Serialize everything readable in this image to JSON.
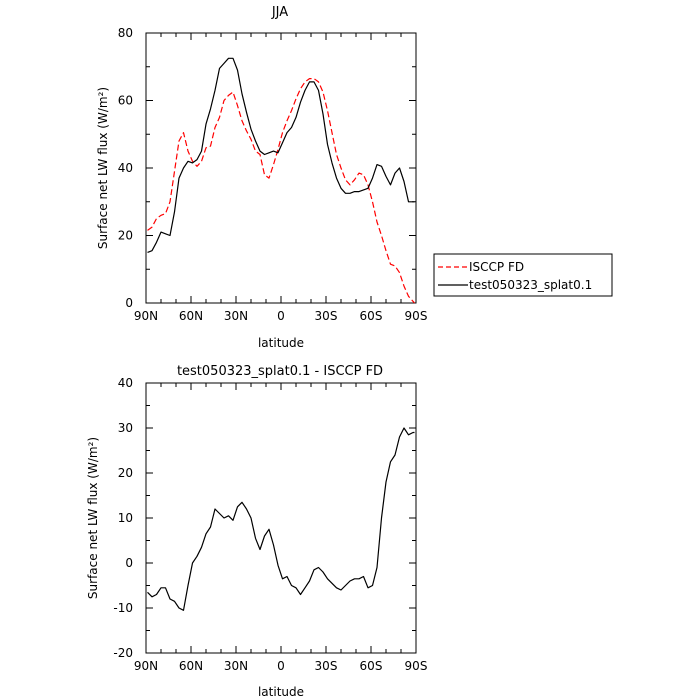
{
  "chart_data": [
    {
      "type": "line",
      "title": "JJA",
      "xlabel": "latitude",
      "ylabel": "Surface net LW flux (W/m²)",
      "xlim": [
        90,
        -90
      ],
      "ylim": [
        0,
        80
      ],
      "x_ticks": [
        "90N",
        "60N",
        "30N",
        "0",
        "30S",
        "60S",
        "90S"
      ],
      "x_tick_values": [
        90,
        60,
        30,
        0,
        -30,
        -60,
        -90
      ],
      "y_ticks": [
        "0",
        "20",
        "40",
        "60",
        "80"
      ],
      "y_tick_values": [
        0,
        20,
        40,
        60,
        80
      ],
      "legend_position": "outside-right",
      "series": [
        {
          "name": "ISCCP FD",
          "color": "#ff0000",
          "dash": "dashed",
          "x": [
            89,
            86,
            83,
            80,
            77,
            74,
            71,
            68,
            65,
            62,
            59,
            56,
            53,
            50,
            47,
            44,
            41,
            38,
            35,
            32,
            29,
            26,
            23,
            20,
            17,
            14,
            11,
            8,
            5,
            2,
            -1,
            -4,
            -7,
            -10,
            -13,
            -16,
            -19,
            -22,
            -25,
            -28,
            -31,
            -34,
            -37,
            -40,
            -43,
            -46,
            -49,
            -52,
            -55,
            -58,
            -61,
            -64,
            -67,
            -70,
            -73,
            -76,
            -79,
            -82,
            -85,
            -88,
            -89
          ],
          "y": [
            21.5,
            22.5,
            25,
            26,
            26.5,
            30,
            39,
            48,
            50.5,
            45,
            42,
            40.5,
            42,
            46,
            46.5,
            52,
            55,
            60,
            61.5,
            62.5,
            58.5,
            54,
            51,
            48.5,
            45,
            44,
            38,
            37,
            41,
            45.5,
            50.5,
            54,
            57,
            60.5,
            63.5,
            65.5,
            66.5,
            66.5,
            65.5,
            62.5,
            57,
            50.5,
            44,
            40,
            36.5,
            35,
            36.5,
            38.5,
            38,
            35,
            30,
            24,
            20,
            15.5,
            11.5,
            11,
            9,
            5,
            2,
            0.5,
            0
          ]
        },
        {
          "name": "test050323_splat0.1",
          "color": "#000000",
          "dash": "solid",
          "x": [
            89,
            86,
            83,
            80,
            77,
            74,
            71,
            68,
            65,
            62,
            59,
            56,
            53,
            50,
            47,
            44,
            41,
            38,
            35,
            32,
            29,
            26,
            23,
            20,
            17,
            14,
            11,
            8,
            5,
            2,
            -1,
            -4,
            -7,
            -10,
            -13,
            -16,
            -19,
            -22,
            -25,
            -28,
            -31,
            -34,
            -37,
            -40,
            -43,
            -46,
            -49,
            -52,
            -55,
            -58,
            -61,
            -64,
            -67,
            -70,
            -73,
            -76,
            -79,
            -82,
            -85,
            -88,
            -89
          ],
          "y": [
            15,
            15.5,
            18,
            21,
            20.5,
            20,
            27,
            37,
            40,
            42,
            41.5,
            42.5,
            45,
            53,
            57.5,
            63,
            69.5,
            71,
            72.5,
            72.5,
            69,
            62,
            56.5,
            51.5,
            48,
            45,
            44,
            44.5,
            45,
            44.5,
            47.5,
            50.5,
            52,
            55,
            59.5,
            63,
            65.5,
            65.5,
            63,
            56,
            47,
            41.5,
            37,
            34,
            32.5,
            32.5,
            33,
            33,
            33.5,
            34,
            37,
            41,
            40.5,
            37.5,
            35,
            38.5,
            40,
            36,
            30,
            30,
            30
          ]
        }
      ]
    },
    {
      "type": "line",
      "title": "test050323_splat0.1 - ISCCP FD",
      "xlabel": "latitude",
      "ylabel": "Surface net LW flux (W/m²)",
      "xlim": [
        90,
        -90
      ],
      "ylim": [
        -20,
        40
      ],
      "x_ticks": [
        "90N",
        "60N",
        "30N",
        "0",
        "30S",
        "60S",
        "90S"
      ],
      "x_tick_values": [
        90,
        60,
        30,
        0,
        -30,
        -60,
        -90
      ],
      "y_ticks": [
        "-20",
        "-10",
        "0",
        "10",
        "20",
        "30",
        "40"
      ],
      "y_tick_values": [
        -20,
        -10,
        0,
        10,
        20,
        30,
        40
      ],
      "series": [
        {
          "color": "#000000",
          "dash": "solid",
          "x": [
            89,
            86,
            83,
            80,
            77,
            74,
            71,
            68,
            65,
            62,
            59,
            56,
            53,
            50,
            47,
            44,
            41,
            38,
            35,
            32,
            29,
            26,
            23,
            20,
            17,
            14,
            11,
            8,
            5,
            2,
            -1,
            -4,
            -7,
            -10,
            -13,
            -16,
            -19,
            -22,
            -25,
            -28,
            -31,
            -34,
            -37,
            -40,
            -43,
            -46,
            -49,
            -52,
            -55,
            -58,
            -61,
            -64,
            -67,
            -70,
            -73,
            -76,
            -79,
            -82,
            -85,
            -88,
            -89
          ],
          "y": [
            -6.5,
            -7.5,
            -7,
            -5.5,
            -5.5,
            -8,
            -8.5,
            -10,
            -10.5,
            -5,
            0,
            1.5,
            3.5,
            6.5,
            8,
            12,
            11,
            10,
            10.5,
            9.5,
            12.5,
            13.5,
            12,
            10,
            5.5,
            3,
            6,
            7.5,
            4,
            -0.5,
            -3.5,
            -3,
            -5,
            -5.5,
            -7,
            -5.5,
            -4,
            -1.5,
            -1,
            -2,
            -3.5,
            -4.5,
            -5.5,
            -6,
            -5,
            -4,
            -3.5,
            -3.5,
            -3,
            -5.5,
            -5,
            -1,
            10,
            18,
            22.5,
            24,
            28,
            30,
            28.5,
            29,
            29
          ]
        }
      ]
    }
  ]
}
